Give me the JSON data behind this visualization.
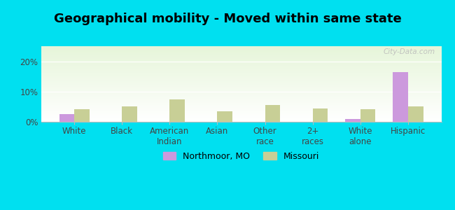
{
  "title": "Geographical mobility - Moved within same state",
  "categories": [
    "White",
    "Black",
    "American\nIndian",
    "Asian",
    "Other\nrace",
    "2+\nraces",
    "White\nalone",
    "Hispanic"
  ],
  "northmoor_values": [
    2.5,
    0,
    0,
    0,
    0,
    0,
    1.0,
    16.5
  ],
  "missouri_values": [
    4.2,
    5.0,
    7.5,
    3.5,
    5.5,
    4.5,
    4.2,
    5.0
  ],
  "northmoor_color": "#cc99dd",
  "missouri_color": "#c8cf96",
  "background_outer": "#00e0f0",
  "ylim": [
    0,
    25
  ],
  "yticks": [
    0,
    10,
    20
  ],
  "ytick_labels": [
    "0%",
    "10%",
    "20%"
  ],
  "bar_width": 0.32,
  "legend_northmoor": "Northmoor, MO",
  "legend_missouri": "Missouri",
  "watermark": "City-Data.com",
  "title_fontsize": 13,
  "axis_fontsize": 8.5
}
